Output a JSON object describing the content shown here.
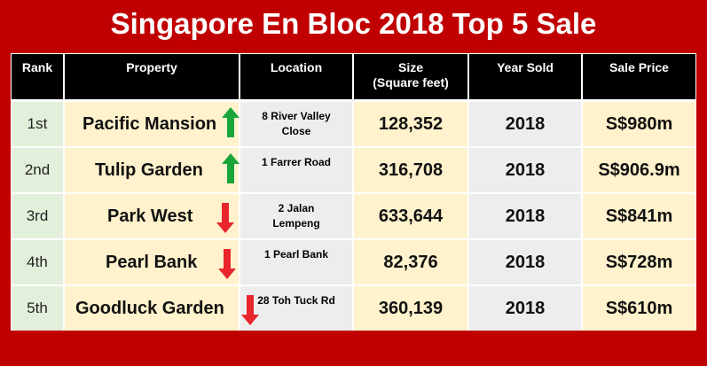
{
  "header": {
    "title": "Singapore En Bloc 2018 Top 5 Sale"
  },
  "table": {
    "columns": [
      "Rank",
      "Property",
      "Location",
      "Size\n(Square feet)",
      "Year Sold",
      "Sale Price"
    ],
    "rows": [
      [
        "1st",
        "Pacific Mansion",
        "8 River Valley Close",
        "128,352",
        "2018",
        "S$980m"
      ],
      [
        "2nd",
        "Tulip Garden",
        "1 Farrer Road",
        "316,708",
        "2018",
        "S$906.9m"
      ],
      [
        "3rd",
        "Park West",
        "2 Jalan Lempeng",
        "633,644",
        "2018",
        "S$841m"
      ],
      [
        "4th",
        "Pearl Bank",
        "1 Pearl Bank",
        "82,376",
        "2018",
        "S$728m"
      ],
      [
        "5th",
        "Goodluck Garden",
        "28 Toh Tuck Rd",
        "360,139",
        "2018",
        "S$610m"
      ]
    ]
  }
}
